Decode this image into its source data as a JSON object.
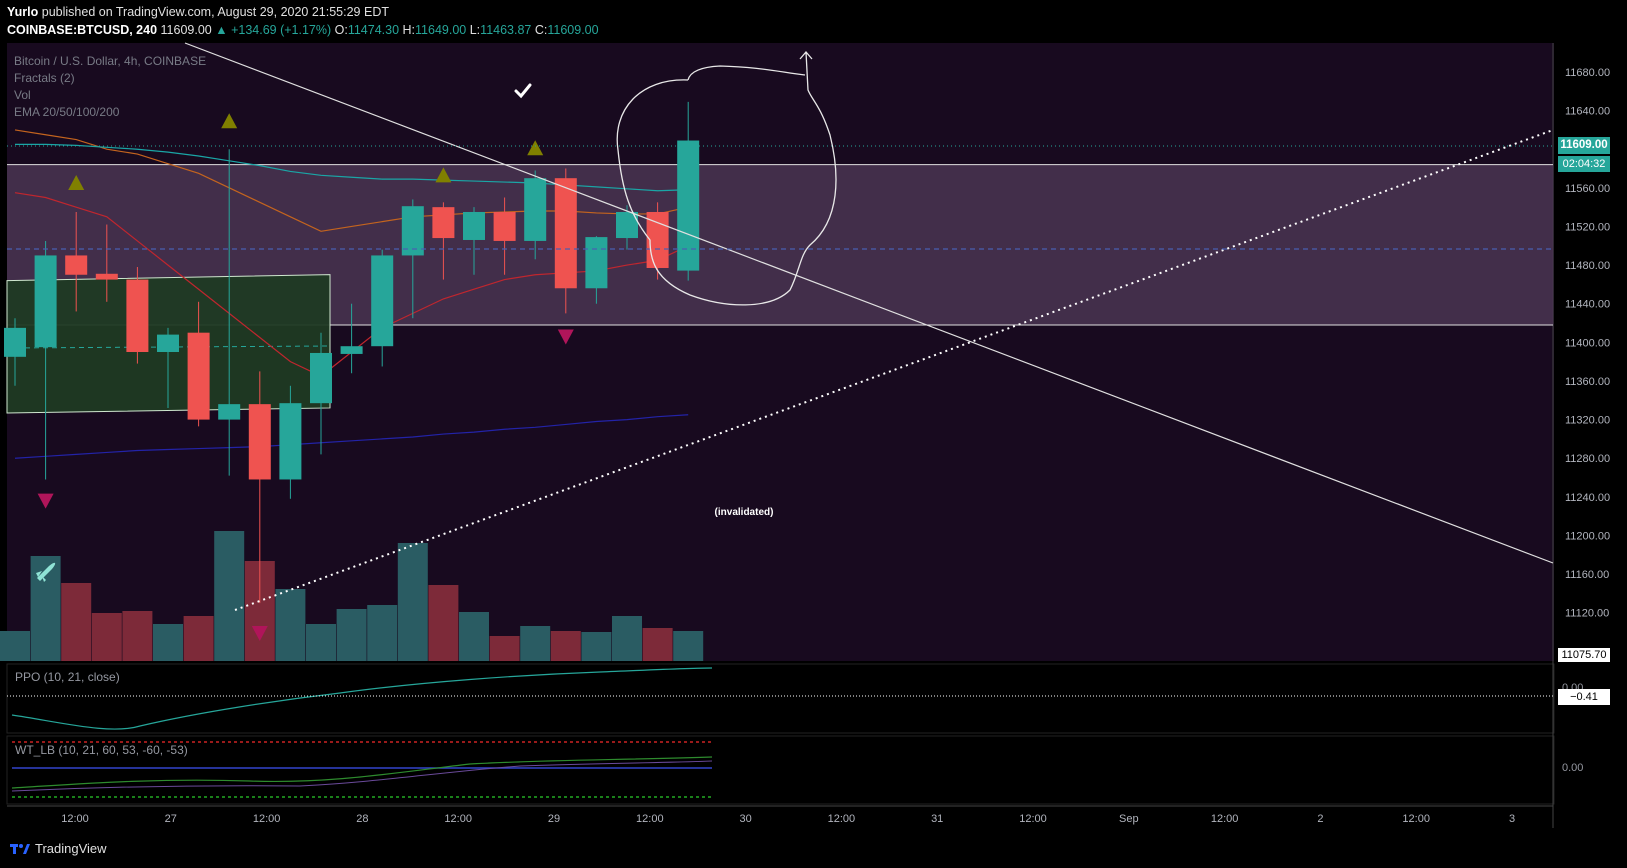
{
  "header": {
    "publisher": "Yurlo",
    "published_text": "published on TradingView.com, August 29, 2020 21:55:29 EDT",
    "symbol": "COINBASE:BTCUSD, 240",
    "last": "11609.00",
    "change": "▲ +134.69 (+1.17%)",
    "o_label": "O:",
    "o": "11474.30",
    "h_label": "H:",
    "h": "11649.00",
    "l_label": "L:",
    "l": "11463.87",
    "c_label": "C:",
    "c": "11609.00"
  },
  "legend": {
    "title": "Bitcoin / U.S. Dollar, 4h, COINBASE",
    "fractals": "Fractals (2)",
    "vol": "Vol",
    "ema": "EMA 20/50/100/200"
  },
  "annotation_text": "(invalidated)",
  "price_tag": "11609.00",
  "countdown": "02:04:32",
  "low_tag": "11075.70",
  "ppo_label": "PPO (10, 21, close)",
  "ppo_value": "−0.41",
  "ppo_zero": "0.00",
  "wt_label": "WT_LB (10, 21, 60, 53, -60, -53)",
  "wt_zero": "0.00",
  "footer_brand": "TradingView",
  "colors": {
    "background": "#180a1f",
    "bull": "#26a69a",
    "bear": "#ef5350",
    "zone_purple": "#4a3552",
    "zone_green": "#1f3a23",
    "fractal_up": "#808000",
    "fractal_down": "#b0155a"
  },
  "chart_data": {
    "type": "candlestick",
    "title": "Bitcoin / U.S. Dollar, 4h, COINBASE",
    "y_ticks": [
      11120,
      11160,
      11200,
      11240,
      11280,
      11320,
      11360,
      11400,
      11440,
      11480,
      11520,
      11560,
      11600,
      11640,
      11680
    ],
    "ylim": [
      11070,
      11710
    ],
    "x_ticks": [
      "12:00",
      "27",
      "12:00",
      "28",
      "12:00",
      "29",
      "12:00",
      "30",
      "12:00",
      "31",
      "12:00",
      "Sep",
      "12:00",
      "2",
      "12:00",
      "3"
    ],
    "candles": [
      {
        "o": 11385,
        "h": 11425,
        "l": 11355,
        "c": 11415
      },
      {
        "o": 11395,
        "h": 11505,
        "l": 11258,
        "c": 11490
      },
      {
        "o": 11490,
        "h": 11535,
        "l": 11432,
        "c": 11470
      },
      {
        "o": 11471,
        "h": 11522,
        "l": 11442,
        "c": 11465
      },
      {
        "o": 11465,
        "h": 11478,
        "l": 11378,
        "c": 11390
      },
      {
        "o": 11390,
        "h": 11415,
        "l": 11332,
        "c": 11408
      },
      {
        "o": 11410,
        "h": 11442,
        "l": 11313,
        "c": 11320
      },
      {
        "o": 11320,
        "h": 11600,
        "l": 11262,
        "c": 11336
      },
      {
        "o": 11336,
        "h": 11370,
        "l": 11130,
        "c": 11258
      },
      {
        "o": 11258,
        "h": 11355,
        "l": 11238,
        "c": 11337
      },
      {
        "o": 11337,
        "h": 11410,
        "l": 11284,
        "c": 11389
      },
      {
        "o": 11388,
        "h": 11440,
        "l": 11368,
        "c": 11396
      },
      {
        "o": 11396,
        "h": 11496,
        "l": 11375,
        "c": 11490
      },
      {
        "o": 11490,
        "h": 11548,
        "l": 11425,
        "c": 11541
      },
      {
        "o": 11540,
        "h": 11545,
        "l": 11465,
        "c": 11508
      },
      {
        "o": 11506,
        "h": 11540,
        "l": 11470,
        "c": 11535
      },
      {
        "o": 11535,
        "h": 11550,
        "l": 11470,
        "c": 11505
      },
      {
        "o": 11505,
        "h": 11578,
        "l": 11486,
        "c": 11570
      },
      {
        "o": 11570,
        "h": 11580,
        "l": 11430,
        "c": 11456
      },
      {
        "o": 11456,
        "h": 11510,
        "l": 11440,
        "c": 11509
      },
      {
        "o": 11508,
        "h": 11542,
        "l": 11496,
        "c": 11535
      },
      {
        "o": 11535,
        "h": 11545,
        "l": 11465,
        "c": 11477
      },
      {
        "o": 11474.3,
        "h": 11649,
        "l": 11463.87,
        "c": 11609
      }
    ],
    "volume": [
      30,
      105,
      78,
      48,
      50,
      37,
      45,
      130,
      100,
      72,
      37,
      52,
      56,
      118,
      76,
      49,
      25,
      35,
      30,
      29,
      45,
      33,
      30
    ],
    "ema_20": [
      11555,
      11550,
      11540,
      11530,
      11505,
      11480,
      11455,
      11430,
      11405,
      11380,
      11365,
      11390,
      11415,
      11430,
      11445,
      11455,
      11465,
      11470,
      11472,
      11474,
      11480,
      11485,
      11500
    ],
    "ema_50": [
      11620,
      11615,
      11610,
      11600,
      11595,
      11585,
      11575,
      11560,
      11545,
      11530,
      11515,
      11520,
      11525,
      11530,
      11532,
      11534,
      11535,
      11536,
      11536,
      11534,
      11533,
      11533,
      11540
    ],
    "ema_100": [
      11605,
      11605,
      11604,
      11602,
      11600,
      11597,
      11593,
      11588,
      11583,
      11577,
      11573,
      11571,
      11569,
      11569,
      11568,
      11567,
      11566,
      11565,
      11563,
      11561,
      11559,
      11557,
      11558
    ],
    "ema_200": [
      11280,
      11282,
      11284,
      11286,
      11288,
      11289,
      11290,
      11291,
      11292,
      11294,
      11296,
      11298,
      11300,
      11302,
      11305,
      11307,
      11310,
      11312,
      11315,
      11318,
      11320,
      11323,
      11325
    ],
    "fractals_up": [
      {
        "i": 2,
        "price": 11566
      },
      {
        "i": 7,
        "price": 11630
      },
      {
        "i": 14,
        "price": 11574
      },
      {
        "i": 17,
        "price": 11602
      }
    ],
    "fractals_down": [
      {
        "i": 1,
        "price": 11235
      },
      {
        "i": 8,
        "price": 11098
      },
      {
        "i": 18,
        "price": 11405
      }
    ],
    "zones": [
      {
        "name": "resistance-box",
        "top": 11584,
        "bottom": 11418
      },
      {
        "name": "demand-box",
        "top": 11466,
        "bottom": 11330
      }
    ]
  }
}
